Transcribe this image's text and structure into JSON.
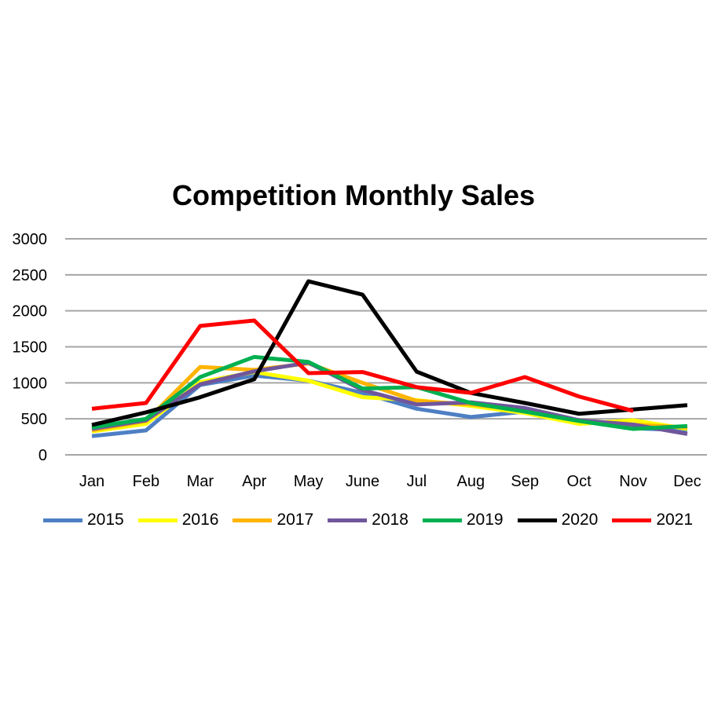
{
  "chart_data": {
    "type": "line",
    "title": "Competition Monthly Sales",
    "xlabel": "",
    "ylabel": "",
    "ylim": [
      0,
      3000
    ],
    "yticks": [
      0,
      500,
      1000,
      1500,
      2000,
      2500,
      3000
    ],
    "grid": true,
    "legend": "bottom",
    "categories": [
      "Jan",
      "Feb",
      "Mar",
      "Apr",
      "May",
      "June",
      "Jul",
      "Aug",
      "Sep",
      "Oct",
      "Nov",
      "Dec"
    ],
    "series": [
      {
        "name": "2015",
        "color": "#4e7fc4",
        "values": [
          260,
          340,
          970,
          1100,
          1030,
          860,
          640,
          525,
          600,
          480,
          370,
          340
        ]
      },
      {
        "name": "2016",
        "color": "#ffff00",
        "values": [
          325,
          430,
          1010,
          1150,
          1030,
          800,
          760,
          680,
          580,
          430,
          480,
          360
        ]
      },
      {
        "name": "2017",
        "color": "#ffb400",
        "values": [
          340,
          470,
          1220,
          1180,
          1270,
          1000,
          750,
          700,
          620,
          480,
          420,
          380
        ]
      },
      {
        "name": "2018",
        "color": "#70569c",
        "values": [
          360,
          480,
          980,
          1160,
          1280,
          900,
          700,
          730,
          650,
          480,
          420,
          290
        ]
      },
      {
        "name": "2019",
        "color": "#00b050",
        "values": [
          380,
          500,
          1080,
          1360,
          1290,
          920,
          940,
          720,
          600,
          470,
          360,
          400
        ]
      },
      {
        "name": "2020",
        "color": "#000000",
        "values": [
          415,
          590,
          800,
          1050,
          2410,
          2225,
          1155,
          860,
          720,
          570,
          630,
          690
        ]
      },
      {
        "name": "2021",
        "color": "#ff0000",
        "values": [
          640,
          720,
          1790,
          1865,
          1135,
          1150,
          940,
          860,
          1080,
          810,
          610,
          null
        ]
      }
    ]
  }
}
